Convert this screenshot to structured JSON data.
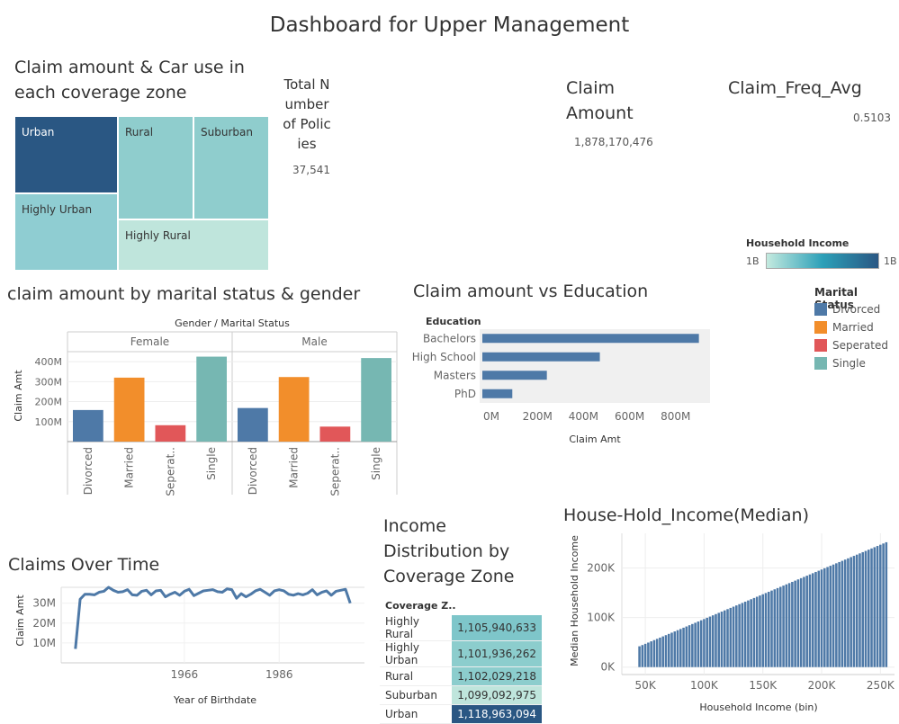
{
  "title": "Dashboard for Upper Management",
  "treemap": {
    "title_line1": "Claim amount & Car use in",
    "title_line2": "each coverage zone",
    "cells": [
      {
        "label": "Urban",
        "color": "#2a5783"
      },
      {
        "label": "Rural",
        "color": "#8fcdcd"
      },
      {
        "label": "Suburban",
        "color": "#8fcdcd"
      },
      {
        "label": "Highly Urban",
        "color": "#8fcdd2"
      },
      {
        "label": "Highly Rural",
        "color": "#bfe5dc"
      }
    ]
  },
  "kpis": {
    "policies": {
      "label_lines": [
        "Total N",
        "umber",
        "of Polic",
        "ies"
      ],
      "value": "37,541"
    },
    "claim_amount": {
      "label_lines": [
        "Claim",
        "Amount"
      ],
      "value": "1,878,170,476"
    },
    "claim_freq": {
      "label": "Claim_Freq_Avg",
      "value": "0.5103"
    }
  },
  "household_legend": {
    "title": "Household Income",
    "min": "1B",
    "max": "1B"
  },
  "marital_legend": {
    "title": "Marital Status",
    "items": [
      {
        "label": "Divorced",
        "color": "#4e79a7"
      },
      {
        "label": "Married",
        "color": "#f28e2b"
      },
      {
        "label": "Seperated",
        "color": "#e15759"
      },
      {
        "label": "Single",
        "color": "#76b7b2"
      }
    ]
  },
  "chart_data": [
    {
      "id": "marital",
      "type": "bar",
      "title": "claim amount by marital status & gender",
      "header": "Gender  /  Marital Status",
      "ylabel": "Claim Amt",
      "ylim": [
        0,
        450
      ],
      "yticks": [
        "100M",
        "200M",
        "300M",
        "400M"
      ],
      "ytick_values": [
        100,
        200,
        300,
        400
      ],
      "panels": [
        "Female",
        "Male"
      ],
      "categories": [
        "Divorced",
        "Married",
        "Seperat..",
        "Single"
      ],
      "series": [
        {
          "name": "Female",
          "values": [
            158,
            320,
            82,
            425
          ]
        },
        {
          "name": "Male",
          "values": [
            168,
            323,
            75,
            418
          ]
        }
      ]
    },
    {
      "id": "education",
      "type": "bar",
      "title": "Claim amount vs  Education",
      "header": "Education",
      "xlabel": "Claim Amt",
      "xlim": [
        0,
        1000
      ],
      "xticks": [
        "0M",
        "200M",
        "400M",
        "600M",
        "800M"
      ],
      "xtick_values": [
        0,
        200,
        400,
        600,
        800
      ],
      "categories": [
        "Bachelors",
        "High School",
        "Masters",
        "PhD"
      ],
      "values": [
        940,
        510,
        280,
        130
      ]
    },
    {
      "id": "overtime",
      "type": "line",
      "title": "Claims Over Time",
      "xlabel": "Year of Birthdate",
      "ylabel": "Claim Amt",
      "xlim": [
        1940,
        2004
      ],
      "ylim": [
        0,
        38
      ],
      "xticks": [
        "1966",
        "1986"
      ],
      "xtick_values": [
        1966,
        1986
      ],
      "yticks": [
        "10M",
        "20M",
        "30M"
      ],
      "ytick_values": [
        10,
        20,
        30
      ],
      "x": [
        1943,
        1944,
        1945,
        1946,
        1947,
        1948,
        1949,
        1950,
        1951,
        1952,
        1953,
        1954,
        1955,
        1956,
        1957,
        1958,
        1959,
        1960,
        1961,
        1962,
        1963,
        1964,
        1965,
        1966,
        1967,
        1968,
        1969,
        1970,
        1971,
        1972,
        1973,
        1974,
        1975,
        1976,
        1977,
        1978,
        1979,
        1980,
        1981,
        1982,
        1983,
        1984,
        1985,
        1986,
        1987,
        1988,
        1989,
        1990,
        1991,
        1992,
        1993,
        1994,
        1995,
        1996,
        1997,
        1998,
        1999,
        2000,
        2001
      ],
      "values": [
        7,
        32,
        34.5,
        34.5,
        34.2,
        35.5,
        36,
        38,
        36.5,
        35.5,
        35.8,
        36.8,
        34.2,
        34,
        36,
        36.5,
        34.2,
        36.2,
        36.5,
        33.2,
        34.5,
        35.5,
        34,
        36,
        37,
        33.8,
        35,
        36.2,
        36.5,
        36.8,
        35.8,
        35.5,
        37.2,
        36.8,
        32.5,
        34.8,
        33.2,
        34.5,
        36.2,
        37,
        35.5,
        34,
        36.2,
        36.8,
        36.2,
        34.5,
        34,
        34.8,
        34.2,
        35,
        36.8,
        34.2,
        35.5,
        36.2,
        34,
        36,
        36.5,
        37,
        30
      ]
    },
    {
      "id": "income_table",
      "type": "table",
      "title_lines": [
        "Income",
        "Distribution by",
        "Coverage Zone"
      ],
      "header": "Coverage Z..",
      "rows": [
        {
          "label": "Highly Rural",
          "value": "1,105,940,633",
          "color": "#7ec6ca"
        },
        {
          "label": "Highly Urban",
          "value": "1,101,936,262",
          "color": "#8ccdcd"
        },
        {
          "label": "Rural",
          "value": "1,102,029,218",
          "color": "#8ccdcd"
        },
        {
          "label": "Suburban",
          "value": "1,099,092,975",
          "color": "#bfe5dc"
        },
        {
          "label": "Urban",
          "value": "1,118,963,094",
          "color": "#2a5783"
        }
      ]
    },
    {
      "id": "median_income",
      "type": "bar",
      "title": "House-Hold_Income(Median)",
      "xlabel": "Household Income (bin)",
      "ylabel": "Median Household Income",
      "xlim": [
        30,
        262
      ],
      "ylim": [
        -15,
        270
      ],
      "xticks": [
        "50K",
        "100K",
        "150K",
        "200K",
        "250K"
      ],
      "xtick_values": [
        50,
        100,
        150,
        200,
        250
      ],
      "yticks": [
        "0K",
        "100K",
        "200K"
      ],
      "ytick_values": [
        0,
        100,
        200
      ],
      "bin_start": 45,
      "bin_step": 2.5,
      "value_start": 42,
      "value_step": 2.5,
      "bin_count": 85
    }
  ]
}
